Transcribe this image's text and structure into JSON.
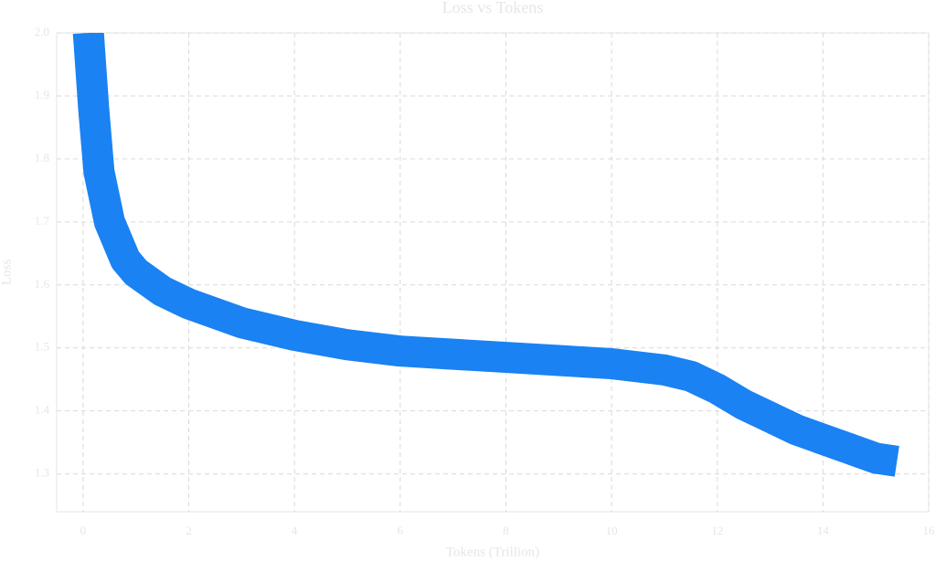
{
  "chart_data": {
    "type": "line",
    "title": "Loss vs Tokens",
    "x_label": "Tokens (Trillion)",
    "y_label": "Loss",
    "x": [
      0.1,
      0.2,
      0.3,
      0.5,
      0.8,
      1,
      1.5,
      2,
      3,
      4,
      5,
      6,
      7,
      8,
      9,
      10,
      11,
      11.5,
      12,
      12.5,
      13,
      13.5,
      14,
      14.5,
      15,
      15.4
    ],
    "values": [
      2.0,
      1.88,
      1.78,
      1.7,
      1.64,
      1.62,
      1.59,
      1.57,
      1.54,
      1.52,
      1.505,
      1.495,
      1.49,
      1.485,
      1.48,
      1.475,
      1.465,
      1.455,
      1.435,
      1.41,
      1.39,
      1.37,
      1.355,
      1.34,
      1.325,
      1.32
    ],
    "color": "#1a82f2",
    "xlim": [
      -0.5,
      16
    ],
    "xticks": [
      0,
      2,
      4,
      6,
      8,
      10,
      12,
      14,
      16
    ],
    "ylim": [
      1.24,
      2.0
    ],
    "yticks": [
      1.3,
      1.4,
      1.5,
      1.6,
      1.7,
      1.8,
      1.9,
      {
        "value": 2,
        "label": "2.0"
      }
    ],
    "grid": true
  }
}
